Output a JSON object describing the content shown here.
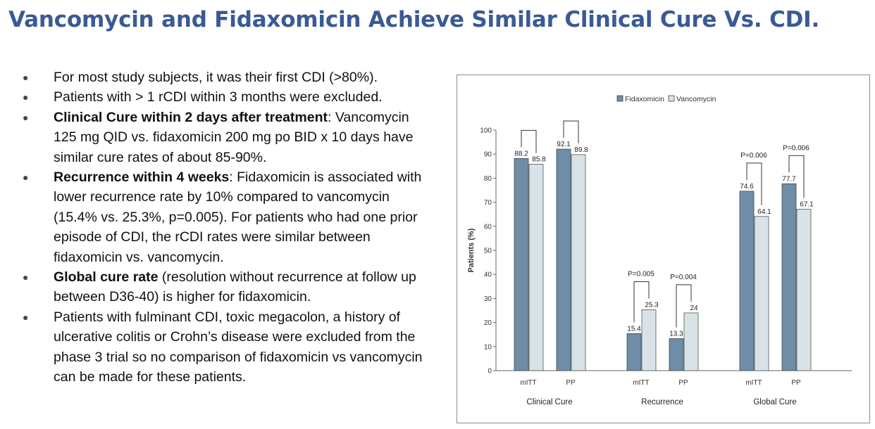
{
  "slide": {
    "title": "Vancomycin and Fidaxomicin Achieve Similar Clinical Cure Vs. CDI."
  },
  "bullets": [
    {
      "bold": "",
      "text": "For most study subjects, it was their first CDI (>80%)."
    },
    {
      "bold": "",
      "text": "Patients with > 1 rCDI within 3 months were excluded."
    },
    {
      "bold": "Clinical Cure within 2 days after treatment",
      "text": ": Vancomycin 125 mg QID vs. fidaxomicin 200 mg po BID x 10 days have similar cure rates of about 85-90%."
    },
    {
      "bold": "Recurrence within 4 weeks",
      "text": ": Fidaxomicin is associated with lower recurrence rate by 10% compared to vancomycin (15.4% vs. 25.3%, p=0.005). For patients who had one prior episode of CDI, the rCDI rates were similar between fidaxomicin vs. vancomycin."
    },
    {
      "bold": "Global cure rate",
      "text": " (resolution without recurrence at follow up between D36-40) is higher for fidaxomicin."
    },
    {
      "bold": "",
      "text": "Patients with fulminant CDI, toxic megacolon, a history of ulcerative colitis or Crohn’s disease were excluded from the phase 3 trial so no comparison of fidaxomicin vs vancomycin can be made for these patients."
    }
  ],
  "chart_data": {
    "type": "bar",
    "ylabel": "Patients (%)",
    "ylim": [
      0,
      100
    ],
    "yticks": [
      0,
      10,
      20,
      30,
      40,
      50,
      60,
      70,
      80,
      90,
      100
    ],
    "legend_position": "top-center",
    "groups": [
      {
        "label": "Clinical Cure",
        "categories": [
          "mITT",
          "PP"
        ],
        "p_values": [
          "",
          ""
        ]
      },
      {
        "label": "Recurrence",
        "categories": [
          "mITT",
          "PP"
        ],
        "p_values": [
          "P=0.005",
          "P=0.004"
        ]
      },
      {
        "label": "Global Cure",
        "categories": [
          "mITT",
          "PP"
        ],
        "p_values": [
          "P=0.006",
          "P=0.006"
        ]
      }
    ],
    "series": [
      {
        "name": "Fidaxomicin",
        "color": "#6f8da6",
        "values": [
          88.2,
          92.1,
          15.4,
          13.3,
          74.6,
          77.7
        ]
      },
      {
        "name": "Vancomycin",
        "color": "#d9e2e6",
        "values": [
          85.8,
          89.8,
          25.3,
          24.0,
          64.1,
          67.1
        ]
      }
    ]
  }
}
